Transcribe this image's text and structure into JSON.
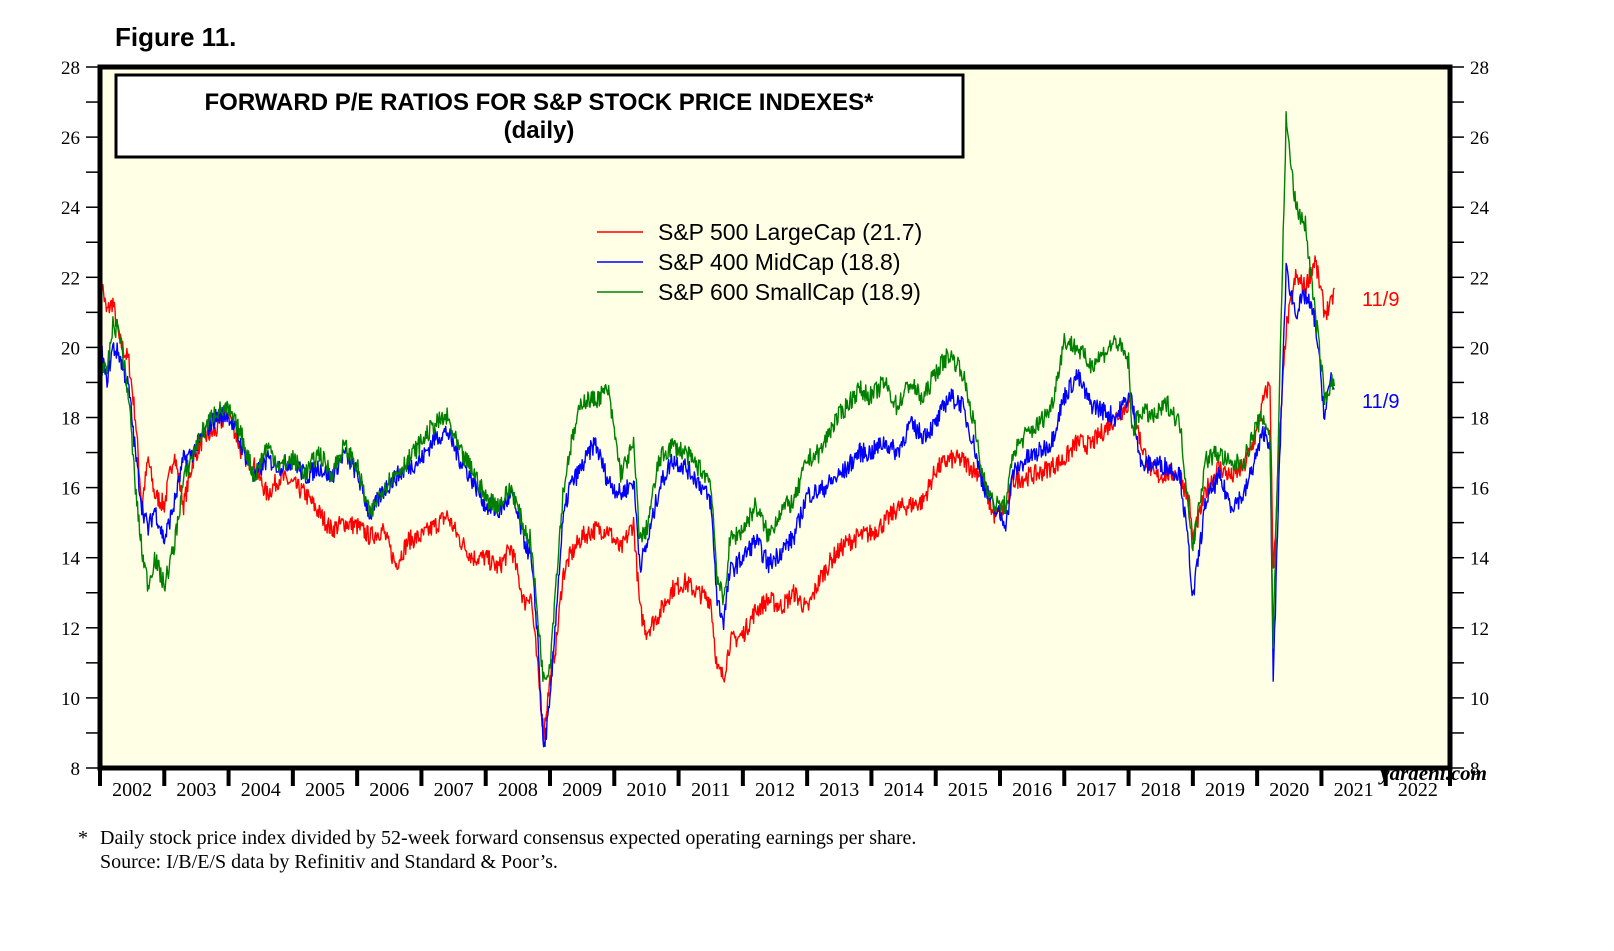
{
  "figure_label": "Figure 11.",
  "footnote": {
    "marker": "*",
    "line1": "Daily stock price index divided by 52-week forward consensus expected operating earnings per share.",
    "line2": "Source: I/B/E/S data by Refinitiv and Standard & Poor’s."
  },
  "watermark": "yardeni.com",
  "chart_data": {
    "type": "line",
    "title": "FORWARD P/E RATIOS FOR S&P STOCK PRICE INDEXES*",
    "subtitle": "(daily)",
    "xlabel": "",
    "ylabel": "",
    "xlim": [
      2002,
      2023
    ],
    "ylim": [
      8,
      28
    ],
    "y_ticks_major": [
      8,
      10,
      12,
      14,
      16,
      18,
      20,
      22,
      24,
      26,
      28
    ],
    "y_ticks_minor_step": 1,
    "y_axis_sides": [
      "left",
      "right"
    ],
    "x_tick_labels": [
      "2002",
      "2003",
      "2004",
      "2005",
      "2006",
      "2007",
      "2008",
      "2009",
      "2010",
      "2011",
      "2012",
      "2013",
      "2014",
      "2015",
      "2016",
      "2017",
      "2018",
      "2019",
      "2020",
      "2021",
      "2022"
    ],
    "grid": false,
    "legend_position": "top-center",
    "background_color": "#ffffe6",
    "series": [
      {
        "name": "S&P 500 LargeCap (21.7)",
        "color": "#ff0000",
        "end_label": "11/9",
        "last_value": 21.7,
        "x": [
          2002.0,
          2002.1,
          2002.2,
          2002.3,
          2002.45,
          2002.55,
          2002.65,
          2002.75,
          2002.85,
          2003.0,
          2003.15,
          2003.3,
          2003.45,
          2003.6,
          2003.8,
          2004.0,
          2004.2,
          2004.4,
          2004.6,
          2004.8,
          2005.0,
          2005.2,
          2005.4,
          2005.6,
          2005.8,
          2006.0,
          2006.2,
          2006.4,
          2006.6,
          2006.8,
          2007.0,
          2007.2,
          2007.4,
          2007.6,
          2007.8,
          2008.0,
          2008.2,
          2008.4,
          2008.6,
          2008.7,
          2008.8,
          2008.9,
          2009.0,
          2009.1,
          2009.2,
          2009.3,
          2009.5,
          2009.7,
          2009.9,
          2010.1,
          2010.3,
          2010.4,
          2010.5,
          2010.7,
          2010.9,
          2011.1,
          2011.3,
          2011.5,
          2011.6,
          2011.7,
          2011.8,
          2012.0,
          2012.2,
          2012.4,
          2012.6,
          2012.8,
          2013.0,
          2013.2,
          2013.4,
          2013.6,
          2013.8,
          2014.0,
          2014.2,
          2014.4,
          2014.6,
          2014.8,
          2015.0,
          2015.2,
          2015.4,
          2015.6,
          2015.7,
          2015.9,
          2016.1,
          2016.2,
          2016.4,
          2016.6,
          2016.8,
          2017.0,
          2017.2,
          2017.4,
          2017.6,
          2017.8,
          2018.0,
          2018.05,
          2018.2,
          2018.4,
          2018.6,
          2018.8,
          2018.95,
          2019.0,
          2019.2,
          2019.4,
          2019.6,
          2019.8,
          2020.0,
          2020.1,
          2020.2,
          2020.25,
          2020.35,
          2020.45,
          2020.6,
          2020.75,
          2020.9,
          2021.0,
          2021.05,
          2021.15,
          2021.2
        ],
        "values": [
          22.2,
          21.0,
          21.3,
          20.2,
          19.6,
          18.0,
          15.5,
          16.8,
          15.8,
          15.5,
          17.0,
          15.5,
          16.8,
          17.4,
          17.6,
          18.2,
          17.0,
          16.6,
          15.8,
          16.3,
          16.1,
          15.8,
          15.3,
          14.8,
          15.0,
          14.9,
          14.6,
          14.8,
          13.8,
          14.5,
          14.6,
          14.9,
          15.2,
          14.5,
          14.0,
          14.0,
          13.7,
          14.3,
          12.7,
          13.0,
          11.0,
          9.0,
          10.5,
          11.6,
          13.5,
          14.0,
          14.6,
          14.8,
          14.8,
          14.2,
          15.0,
          12.5,
          11.9,
          12.4,
          13.1,
          13.3,
          13.0,
          12.8,
          10.8,
          10.6,
          11.6,
          11.8,
          12.5,
          12.8,
          12.6,
          13.0,
          12.5,
          13.4,
          14.0,
          14.4,
          14.6,
          14.7,
          15.0,
          15.4,
          15.5,
          15.6,
          16.5,
          16.8,
          16.8,
          16.5,
          16.4,
          15.2,
          15.4,
          16.2,
          16.3,
          16.4,
          16.6,
          16.8,
          17.3,
          17.2,
          17.6,
          18.0,
          18.4,
          18.5,
          17.2,
          16.3,
          16.4,
          16.4,
          15.5,
          14.5,
          15.9,
          16.6,
          16.3,
          16.6,
          17.6,
          18.5,
          19.0,
          13.5,
          17.4,
          20.5,
          22.0,
          21.7,
          22.5,
          21.5,
          21.0,
          21.2,
          21.7
        ]
      },
      {
        "name": "S&P 400 MidCap (18.8)",
        "color": "#0000ff",
        "end_label": "11/9",
        "last_value": 18.8,
        "x": [
          2002.0,
          2002.1,
          2002.2,
          2002.3,
          2002.45,
          2002.55,
          2002.65,
          2002.75,
          2002.85,
          2003.0,
          2003.15,
          2003.3,
          2003.45,
          2003.6,
          2003.8,
          2004.0,
          2004.2,
          2004.4,
          2004.6,
          2004.8,
          2005.0,
          2005.2,
          2005.4,
          2005.6,
          2005.8,
          2006.0,
          2006.2,
          2006.4,
          2006.6,
          2006.8,
          2007.0,
          2007.2,
          2007.4,
          2007.6,
          2007.8,
          2008.0,
          2008.2,
          2008.4,
          2008.6,
          2008.7,
          2008.8,
          2008.9,
          2009.0,
          2009.1,
          2009.2,
          2009.3,
          2009.5,
          2009.7,
          2009.9,
          2010.1,
          2010.3,
          2010.4,
          2010.5,
          2010.7,
          2010.9,
          2011.1,
          2011.3,
          2011.5,
          2011.6,
          2011.7,
          2011.8,
          2012.0,
          2012.2,
          2012.4,
          2012.6,
          2012.8,
          2013.0,
          2013.2,
          2013.4,
          2013.6,
          2013.8,
          2014.0,
          2014.2,
          2014.4,
          2014.6,
          2014.8,
          2015.0,
          2015.2,
          2015.4,
          2015.6,
          2015.7,
          2015.9,
          2016.1,
          2016.2,
          2016.4,
          2016.6,
          2016.8,
          2017.0,
          2017.2,
          2017.4,
          2017.6,
          2017.8,
          2018.0,
          2018.05,
          2018.2,
          2018.4,
          2018.6,
          2018.8,
          2018.95,
          2019.0,
          2019.2,
          2019.4,
          2019.6,
          2019.8,
          2020.0,
          2020.1,
          2020.2,
          2020.25,
          2020.35,
          2020.45,
          2020.6,
          2020.75,
          2020.9,
          2021.0,
          2021.05,
          2021.15,
          2021.2
        ],
        "values": [
          20.2,
          19.0,
          20.0,
          19.8,
          18.8,
          17.0,
          15.5,
          14.8,
          15.4,
          14.5,
          15.5,
          16.8,
          17.0,
          17.5,
          18.0,
          18.1,
          17.2,
          16.3,
          16.8,
          16.6,
          16.8,
          16.3,
          16.6,
          16.3,
          17.0,
          16.4,
          15.2,
          15.9,
          16.3,
          16.6,
          16.8,
          17.4,
          17.6,
          16.8,
          16.2,
          15.5,
          15.3,
          15.8,
          14.5,
          14.0,
          12.0,
          8.5,
          9.8,
          12.6,
          15.0,
          16.0,
          16.6,
          17.3,
          16.2,
          15.8,
          16.2,
          13.8,
          14.3,
          16.0,
          16.8,
          16.6,
          16.2,
          15.6,
          12.8,
          12.2,
          13.6,
          14.0,
          14.5,
          13.8,
          14.2,
          14.6,
          15.8,
          15.9,
          16.2,
          16.5,
          17.0,
          17.0,
          17.3,
          17.0,
          17.8,
          17.5,
          17.8,
          18.6,
          18.4,
          17.2,
          16.3,
          15.4,
          15.0,
          16.4,
          16.8,
          17.0,
          17.3,
          18.6,
          19.2,
          18.4,
          18.2,
          18.0,
          18.6,
          18.5,
          16.6,
          16.7,
          16.6,
          16.4,
          14.0,
          12.8,
          15.6,
          16.3,
          15.5,
          15.8,
          17.0,
          17.6,
          17.3,
          10.5,
          16.8,
          22.2,
          21.0,
          21.5,
          20.8,
          19.0,
          18.0,
          19.2,
          18.8
        ]
      },
      {
        "name": "S&P 600 SmallCap (18.9)",
        "color": "#008000",
        "end_label": "",
        "last_value": 18.9,
        "x": [
          2002.0,
          2002.1,
          2002.2,
          2002.3,
          2002.45,
          2002.55,
          2002.65,
          2002.75,
          2002.85,
          2003.0,
          2003.15,
          2003.3,
          2003.45,
          2003.6,
          2003.8,
          2004.0,
          2004.2,
          2004.4,
          2004.6,
          2004.8,
          2005.0,
          2005.2,
          2005.4,
          2005.6,
          2005.8,
          2006.0,
          2006.2,
          2006.4,
          2006.6,
          2006.8,
          2007.0,
          2007.2,
          2007.4,
          2007.6,
          2007.8,
          2008.0,
          2008.2,
          2008.4,
          2008.6,
          2008.7,
          2008.8,
          2008.9,
          2009.0,
          2009.1,
          2009.2,
          2009.3,
          2009.5,
          2009.7,
          2009.9,
          2010.1,
          2010.3,
          2010.4,
          2010.5,
          2010.7,
          2010.9,
          2011.1,
          2011.3,
          2011.5,
          2011.6,
          2011.7,
          2011.8,
          2012.0,
          2012.2,
          2012.4,
          2012.6,
          2012.8,
          2013.0,
          2013.2,
          2013.4,
          2013.6,
          2013.8,
          2014.0,
          2014.2,
          2014.4,
          2014.6,
          2014.8,
          2015.0,
          2015.2,
          2015.4,
          2015.6,
          2015.7,
          2015.9,
          2016.1,
          2016.2,
          2016.4,
          2016.6,
          2016.8,
          2017.0,
          2017.2,
          2017.4,
          2017.6,
          2017.8,
          2018.0,
          2018.05,
          2018.2,
          2018.4,
          2018.6,
          2018.8,
          2018.95,
          2019.0,
          2019.2,
          2019.4,
          2019.6,
          2019.8,
          2020.0,
          2020.1,
          2020.2,
          2020.25,
          2020.35,
          2020.45,
          2020.6,
          2020.75,
          2020.9,
          2021.0,
          2021.05,
          2021.15,
          2021.2
        ],
        "values": [
          19.6,
          19.2,
          20.6,
          20.5,
          18.5,
          16.0,
          14.2,
          13.2,
          14.0,
          13.2,
          14.3,
          16.2,
          17.0,
          17.6,
          18.2,
          18.2,
          17.5,
          16.3,
          17.2,
          16.6,
          16.8,
          16.4,
          17.0,
          16.4,
          17.2,
          16.6,
          15.2,
          16.0,
          16.4,
          16.8,
          17.3,
          17.8,
          18.0,
          17.0,
          16.5,
          15.7,
          15.5,
          16.0,
          14.8,
          14.5,
          12.5,
          10.5,
          11.0,
          13.5,
          15.8,
          17.0,
          18.5,
          18.5,
          18.8,
          16.4,
          17.2,
          14.5,
          14.8,
          16.8,
          17.2,
          17.0,
          16.6,
          16.2,
          13.5,
          12.7,
          14.5,
          14.8,
          15.5,
          14.6,
          15.4,
          15.6,
          16.8,
          17.0,
          17.8,
          18.3,
          18.8,
          18.6,
          19.0,
          18.3,
          19.0,
          18.5,
          19.3,
          19.8,
          19.4,
          17.8,
          16.6,
          15.5,
          15.5,
          17.0,
          17.5,
          17.8,
          18.3,
          20.2,
          20.0,
          19.5,
          19.8,
          20.2,
          19.6,
          17.6,
          18.2,
          18.0,
          18.4,
          17.8,
          15.2,
          14.3,
          16.8,
          17.0,
          16.6,
          16.8,
          17.8,
          18.0,
          17.5,
          11.5,
          19.0,
          26.5,
          24.0,
          23.5,
          21.0,
          19.5,
          18.5,
          19.0,
          18.9
        ]
      }
    ]
  }
}
